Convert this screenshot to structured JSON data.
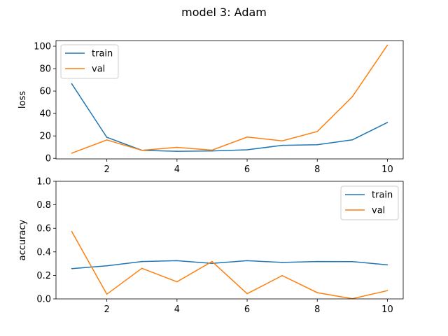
{
  "suptitle": "model 3: Adam",
  "colors": {
    "train": "#1f77b4",
    "val": "#ff7f0e"
  },
  "chart_data": [
    {
      "type": "line",
      "name": "loss",
      "xlabel": "",
      "ylabel": "loss",
      "xlim": [
        0.55,
        10.45
      ],
      "ylim": [
        -0.5,
        105
      ],
      "xticks": [
        2,
        4,
        6,
        8,
        10
      ],
      "yticks": [
        0,
        20,
        40,
        60,
        80,
        100
      ],
      "legend": "top-left",
      "grid": false,
      "x": [
        1,
        2,
        3,
        4,
        5,
        6,
        7,
        8,
        9,
        10
      ],
      "series": [
        {
          "name": "train",
          "values": [
            66.5,
            18.8,
            7.2,
            6.3,
            6.6,
            7.6,
            11.6,
            12.2,
            16.5,
            32.0
          ]
        },
        {
          "name": "val",
          "values": [
            4.6,
            16.4,
            7.1,
            9.8,
            7.3,
            19.0,
            15.6,
            24.0,
            55.0,
            101.0
          ]
        }
      ]
    },
    {
      "type": "line",
      "name": "accuracy",
      "xlabel": "",
      "ylabel": "accuracy",
      "xlim": [
        0.55,
        10.45
      ],
      "ylim": [
        0.0,
        1.0
      ],
      "xticks": [
        2,
        4,
        6,
        8,
        10
      ],
      "yticks": [
        "0.0",
        "0.2",
        "0.4",
        "0.6",
        "0.8",
        "1.0"
      ],
      "legend": "top-right",
      "grid": false,
      "x": [
        1,
        2,
        3,
        4,
        5,
        6,
        7,
        8,
        9,
        10
      ],
      "series": [
        {
          "name": "train",
          "values": [
            0.258,
            0.281,
            0.318,
            0.325,
            0.302,
            0.325,
            0.31,
            0.318,
            0.317,
            0.289
          ]
        },
        {
          "name": "val",
          "values": [
            0.573,
            0.04,
            0.26,
            0.145,
            0.318,
            0.044,
            0.198,
            0.053,
            0.002,
            0.07
          ]
        }
      ]
    }
  ]
}
